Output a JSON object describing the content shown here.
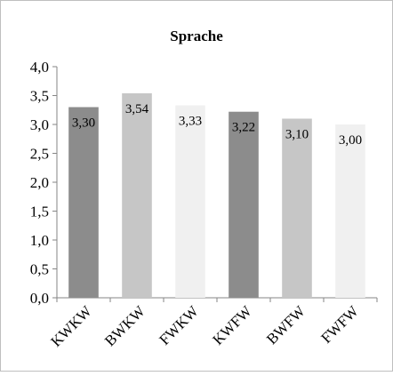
{
  "chart_data": {
    "type": "bar",
    "title": "Sprache",
    "xlabel": "",
    "ylabel": "",
    "categories": [
      "KWKW",
      "BWKW",
      "FWKW",
      "KWFW",
      "BWFW",
      "FWFW"
    ],
    "values": [
      3.3,
      3.54,
      3.33,
      3.22,
      3.1,
      3.0
    ],
    "value_labels": [
      "3,30",
      "3,54",
      "3,33",
      "3,22",
      "3,10",
      "3,00"
    ],
    "bar_colors": [
      "#8c8c8c",
      "#c6c6c6",
      "#f0f0f0",
      "#8c8c8c",
      "#c6c6c6",
      "#f0f0f0"
    ],
    "ylim": [
      0,
      4.0
    ],
    "yticks": [
      0,
      0.5,
      1.0,
      1.5,
      2.0,
      2.5,
      3.0,
      3.5,
      4.0
    ],
    "ytick_labels": [
      "0,0",
      "0,5",
      "1,0",
      "1,5",
      "2,0",
      "2,5",
      "3,0",
      "3,5",
      "4,0"
    ],
    "grid": false,
    "legend": "none"
  }
}
